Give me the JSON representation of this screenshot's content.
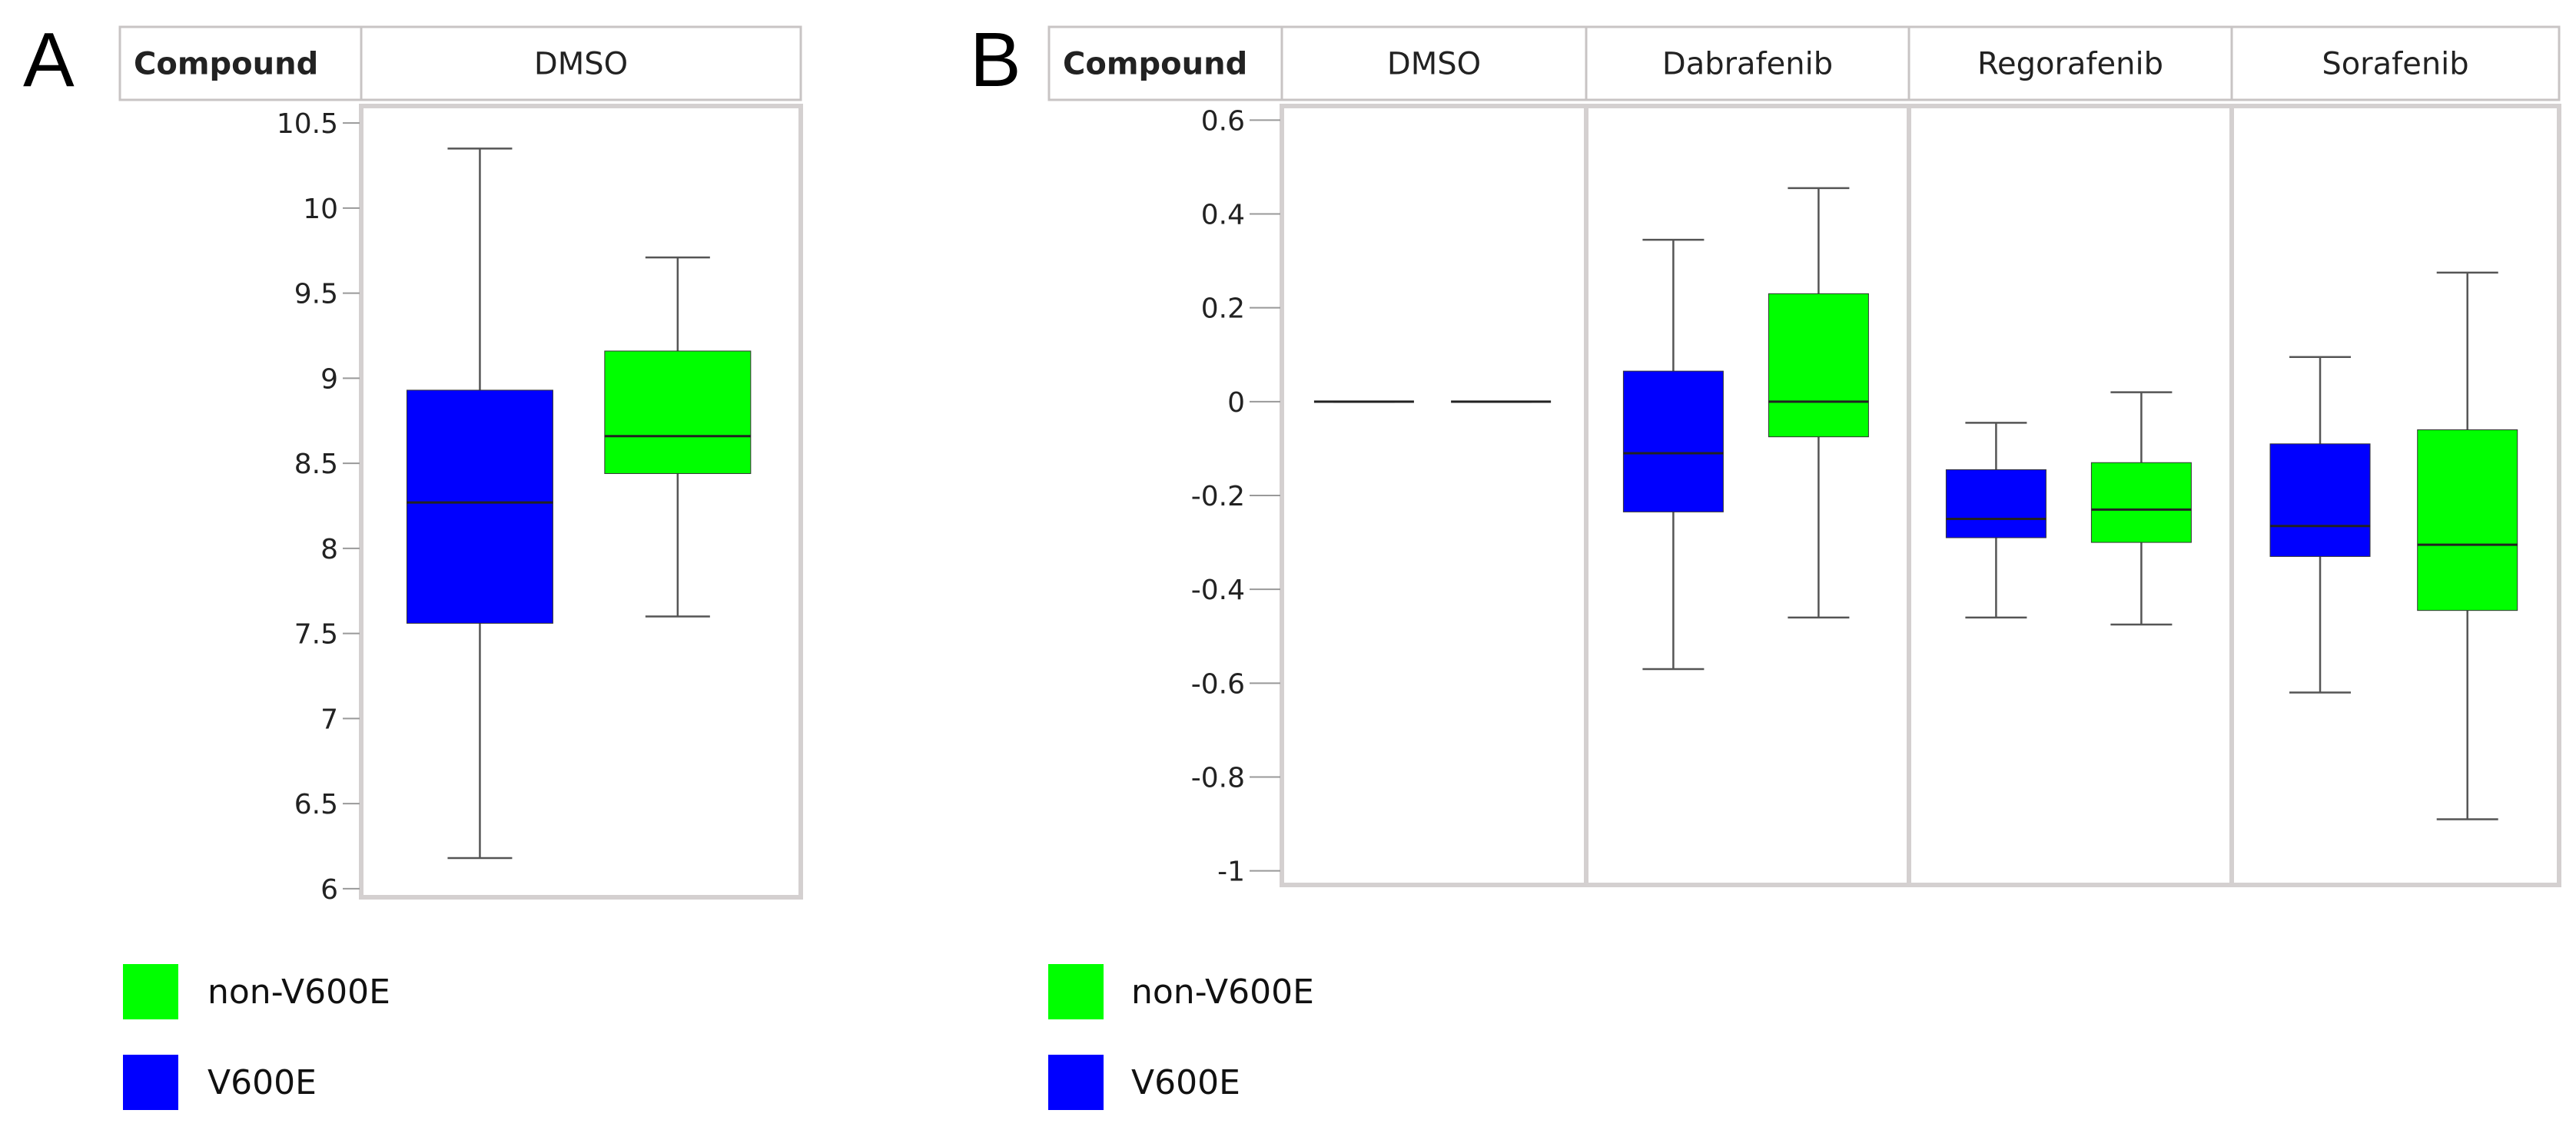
{
  "colors": {
    "non_v600e": "#00ff00",
    "v600e": "#0000ff",
    "frame": "#d4d0d0",
    "header_border": "#c8c4c4",
    "whisker": "#555555",
    "text": "#222222"
  },
  "chart_data": [
    {
      "type": "box",
      "panel_label": "A",
      "facet_header_label": "Compound",
      "facets": [
        "DMSO"
      ],
      "ylim": [
        5.95,
        10.6
      ],
      "yticks": [
        6,
        6.5,
        7,
        7.5,
        8,
        8.5,
        9,
        9.5,
        10,
        10.5
      ],
      "ytick_labels": [
        "6",
        "6.5",
        "7",
        "7.5",
        "8",
        "8.5",
        "9",
        "9.5",
        "10",
        "10.5"
      ],
      "series": [
        {
          "name": "V600E",
          "color": "#0000ff",
          "boxes": [
            {
              "facet": "DMSO",
              "min": 6.18,
              "q1": 7.56,
              "median": 8.27,
              "q3": 8.93,
              "max": 10.35
            }
          ]
        },
        {
          "name": "non-V600E",
          "color": "#00ff00",
          "boxes": [
            {
              "facet": "DMSO",
              "min": 7.6,
              "q1": 8.44,
              "median": 8.66,
              "q3": 9.16,
              "max": 9.71
            }
          ]
        }
      ],
      "legend": [
        {
          "label": "non-V600E",
          "color": "#00ff00"
        },
        {
          "label": "V600E",
          "color": "#0000ff"
        }
      ]
    },
    {
      "type": "box",
      "panel_label": "B",
      "facet_header_label": "Compound",
      "facets": [
        "DMSO",
        "Dabrafenib",
        "Regorafenib",
        "Sorafenib"
      ],
      "ylim": [
        -1.03,
        0.63
      ],
      "yticks": [
        -1,
        -0.8,
        -0.6,
        -0.4,
        -0.2,
        0,
        0.2,
        0.4,
        0.6
      ],
      "ytick_labels": [
        "-1",
        "-0.8",
        "-0.6",
        "-0.4",
        "-0.2",
        "0",
        "0.2",
        "0.4",
        "0.6"
      ],
      "series": [
        {
          "name": "V600E",
          "color": "#0000ff",
          "boxes": [
            {
              "facet": "DMSO",
              "min": 0,
              "q1": 0,
              "median": 0,
              "q3": 0,
              "max": 0
            },
            {
              "facet": "Dabrafenib",
              "min": -0.57,
              "q1": -0.235,
              "median": -0.11,
              "q3": 0.065,
              "max": 0.345
            },
            {
              "facet": "Regorafenib",
              "min": -0.46,
              "q1": -0.29,
              "median": -0.25,
              "q3": -0.145,
              "max": -0.045
            },
            {
              "facet": "Sorafenib",
              "min": -0.62,
              "q1": -0.33,
              "median": -0.265,
              "q3": -0.09,
              "max": 0.095
            }
          ]
        },
        {
          "name": "non-V600E",
          "color": "#00ff00",
          "boxes": [
            {
              "facet": "DMSO",
              "min": 0,
              "q1": 0,
              "median": 0,
              "q3": 0,
              "max": 0
            },
            {
              "facet": "Dabrafenib",
              "min": -0.46,
              "q1": -0.075,
              "median": 0.0,
              "q3": 0.23,
              "max": 0.455
            },
            {
              "facet": "Regorafenib",
              "min": -0.475,
              "q1": -0.3,
              "median": -0.23,
              "q3": -0.13,
              "max": 0.02
            },
            {
              "facet": "Sorafenib",
              "min": -0.89,
              "q1": -0.445,
              "median": -0.305,
              "q3": -0.06,
              "max": 0.275
            }
          ]
        }
      ],
      "legend": [
        {
          "label": "non-V600E",
          "color": "#00ff00"
        },
        {
          "label": "V600E",
          "color": "#0000ff"
        }
      ]
    }
  ]
}
